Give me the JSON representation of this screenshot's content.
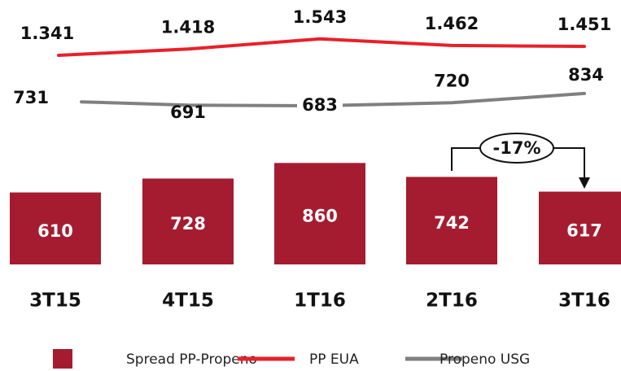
{
  "chart_data": {
    "type": "bar",
    "categories": [
      "3T15",
      "4T15",
      "1T16",
      "2T16",
      "3T16"
    ],
    "series": [
      {
        "name": "Spread PP-Propeno",
        "type": "bar",
        "color": "#a51c30",
        "values": [
          610,
          728,
          860,
          742,
          617
        ]
      },
      {
        "name": "PP EUA",
        "type": "line",
        "color": "#e8202a",
        "values": [
          1341,
          1418,
          1543,
          1462,
          1451
        ],
        "value_labels": [
          "1.341",
          "1.418",
          "1.543",
          "1.462",
          "1.451"
        ]
      },
      {
        "name": "Propeno USG",
        "type": "line",
        "color": "#808080",
        "values": [
          731,
          691,
          683,
          720,
          834
        ]
      }
    ],
    "annotations": [
      {
        "text": "-17%"
      }
    ]
  }
}
